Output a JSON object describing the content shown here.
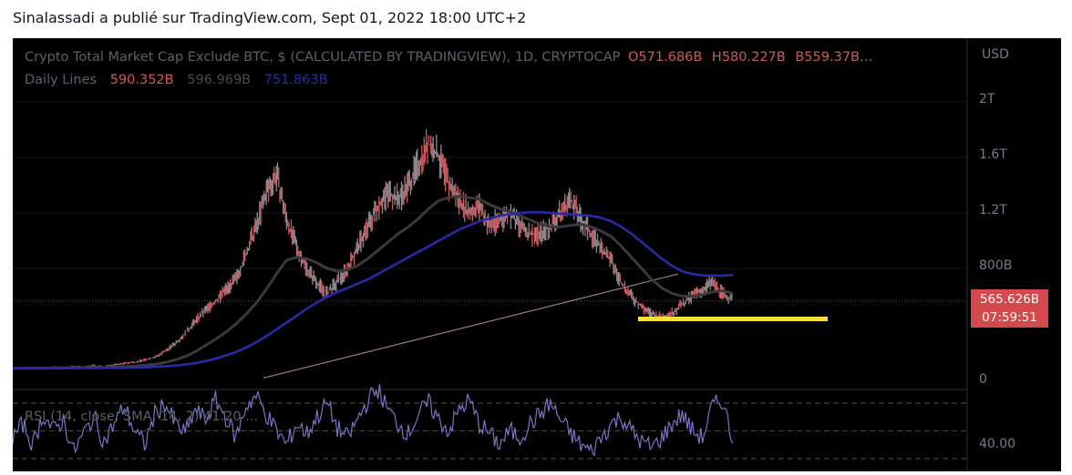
{
  "header": {
    "text": "Sinalassadi a publié sur TradingView.com, Sept 01, 2022 18:00 UTC+2"
  },
  "legend": {
    "title": "Crypto Total Market Cap Exclude BTC, $ (CALCULATED BY TRADINGVIEW), 1D, CRYPTOCAP",
    "o": "O571.686B",
    "h": "H580.227B",
    "b": "B559.37B…",
    "indicator": "Daily Lines",
    "v1": "590.352B",
    "v2": "596.969B",
    "v3": "751.863B"
  },
  "price_axis": {
    "currency": "USD",
    "ticks": [
      "2T",
      "1.6T",
      "1.2T",
      "800B",
      "0"
    ],
    "last_price": "565.626B",
    "countdown": "07:59:51"
  },
  "rsi": {
    "label": "RSI (14, close, SMA, 14, 2)  41.20  ...",
    "tick": "40.00"
  },
  "colors": {
    "background": "#000000",
    "candle_down": "#d2585b",
    "candle_up": "#8a8d96",
    "ma_long": "#2a2aa8",
    "ma_short": "#3a3a3e",
    "trendline": "#9b7c7c",
    "support": "#f5e03c",
    "rsi_line": "#7b74c4"
  },
  "chart_data": [
    {
      "type": "line",
      "title": "Crypto Total Market Cap Exclude BTC, $ (CALCULATED BY TRADINGVIEW), 1D, CRYPTOCAP",
      "y_ticks": [
        "2T",
        "1.6T",
        "1.2T",
        "800B",
        "0"
      ],
      "ylim": [
        0,
        2300000000000
      ],
      "last_value": 565626000000,
      "series": [
        {
          "name": "Crypto Total Market Cap Exclude BTC",
          "values": [
            82,
            80,
            85,
            78,
            90,
            83,
            95,
            88,
            100,
            92,
            105,
            115,
            125,
            140,
            160,
            200,
            260,
            330,
            420,
            500,
            560,
            650,
            720,
            900,
            1100,
            1350,
            1480,
            1150,
            950,
            800,
            700,
            620,
            700,
            800,
            950,
            1100,
            1250,
            1350,
            1300,
            1400,
            1550,
            1700,
            1600,
            1400,
            1300,
            1200,
            1250,
            1100,
            1150,
            1200,
            1100,
            1050,
            1050,
            1100,
            1200,
            1300,
            1150,
            1050,
            950,
            850,
            700,
            600,
            520,
            470,
            450,
            480,
            540,
            600,
            650,
            700,
            620,
            570
          ]
        },
        {
          "name": "Daily Lines",
          "values": [
            80,
            81,
            82,
            82,
            83,
            84,
            85,
            86,
            87,
            88,
            89,
            92,
            96,
            102,
            110,
            122,
            140,
            165,
            200,
            245,
            290,
            340,
            400,
            470,
            550,
            650,
            760,
            860,
            880,
            870,
            840,
            800,
            780,
            790,
            820,
            870,
            930,
            990,
            1050,
            1100,
            1160,
            1230,
            1290,
            1310,
            1320,
            1310,
            1300,
            1260,
            1230,
            1210,
            1180,
            1150,
            1120,
            1100,
            1100,
            1110,
            1120,
            1100,
            1070,
            1030,
            960,
            880,
            800,
            720,
            660,
            620,
            600,
            600,
            610,
            630,
            640,
            620
          ]
        },
        {
          "name": "Daily Lines",
          "values": [
            79,
            79,
            80,
            80,
            80,
            81,
            81,
            82,
            82,
            83,
            83,
            84,
            86,
            88,
            91,
            95,
            100,
            108,
            118,
            132,
            150,
            172,
            198,
            230,
            268,
            312,
            360,
            410,
            460,
            510,
            555,
            595,
            630,
            660,
            690,
            720,
            760,
            800,
            840,
            880,
            920,
            960,
            1000,
            1040,
            1080,
            1110,
            1140,
            1160,
            1180,
            1190,
            1200,
            1205,
            1205,
            1200,
            1195,
            1190,
            1185,
            1180,
            1165,
            1140,
            1100,
            1050,
            990,
            930,
            870,
            820,
            780,
            760,
            750,
            748,
            749,
            751.863
          ]
        }
      ]
    },
    {
      "type": "line",
      "title": "RSI (14, close, SMA, 14, 2)",
      "y_ticks": [
        "40.00"
      ],
      "ylim": [
        20,
        90
      ],
      "last_value": 41.2,
      "series": [
        {
          "name": "RSI",
          "values": [
            45,
            55,
            40,
            62,
            50,
            58,
            35,
            48,
            60,
            42,
            55,
            68,
            50,
            40,
            62,
            70,
            55,
            48,
            65,
            58,
            72,
            60,
            45,
            68,
            75,
            62,
            50,
            40,
            55,
            48,
            60,
            70,
            52,
            45,
            58,
            72,
            80,
            65,
            55,
            48,
            62,
            70,
            58,
            50,
            65,
            72,
            55,
            48,
            40,
            50,
            45,
            55,
            62,
            70,
            58,
            48,
            40,
            35,
            45,
            55,
            60,
            50,
            42,
            38,
            45,
            55,
            62,
            50,
            45,
            68,
            72,
            41.2
          ]
        }
      ]
    }
  ]
}
